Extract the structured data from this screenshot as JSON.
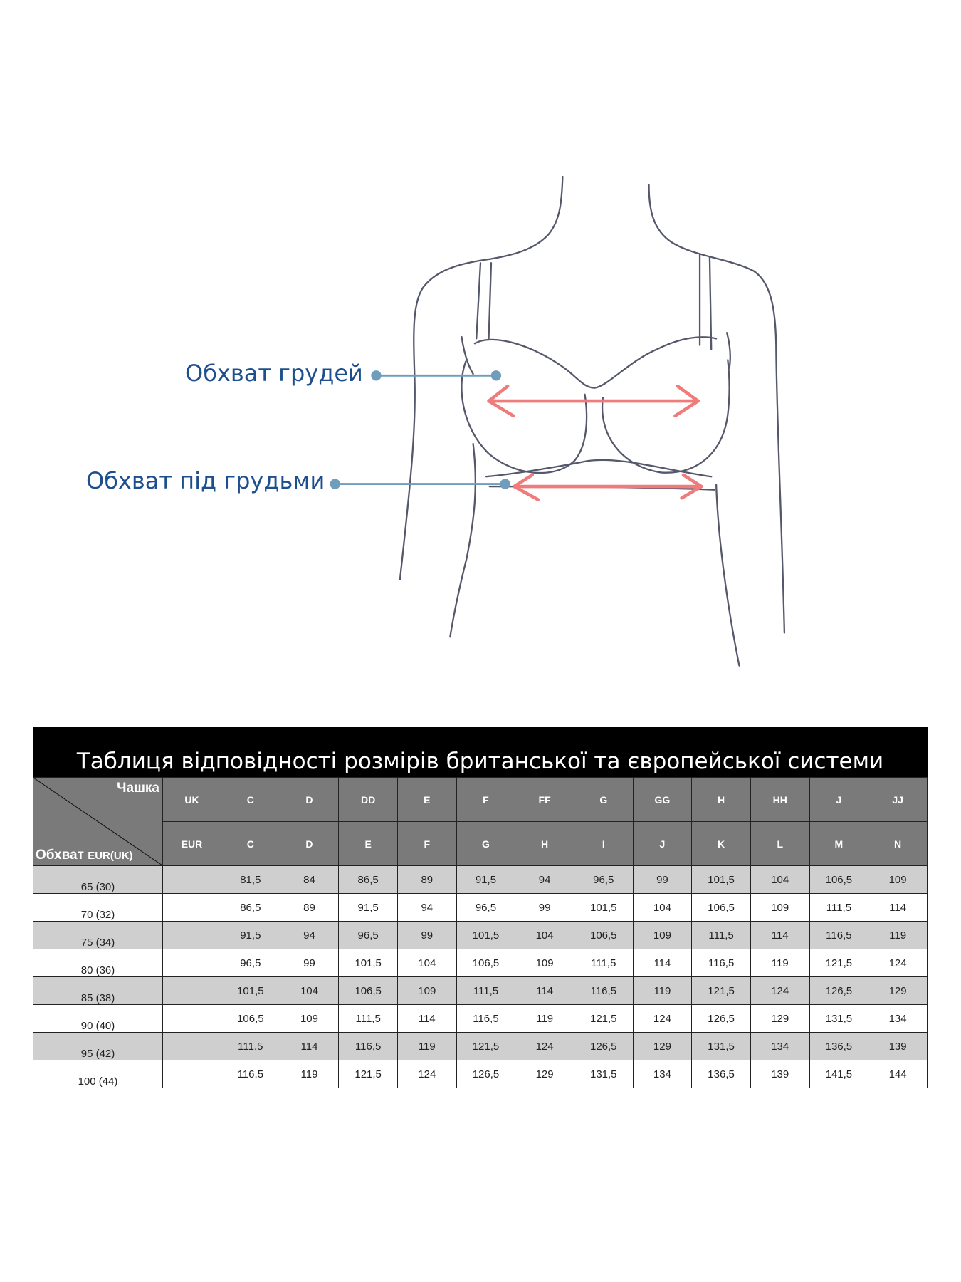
{
  "figure": {
    "label_bust": "Обхват грудей",
    "label_underbust": "Обхват під грудьми",
    "colors": {
      "label": "#1d4f8f",
      "pointer": "#6f9dbb",
      "arrow": "#ef7b7b",
      "outline": "#55586a"
    }
  },
  "table": {
    "title": "Таблиця відповідності розмірів британської та європейської системи",
    "corner_top": "Чашка",
    "corner_bottom": "Обхват",
    "corner_bottom_small": "EUR(UK)",
    "uk_label": "UK",
    "eur_label": "EUR",
    "uk_cups": [
      "C",
      "D",
      "DD",
      "E",
      "F",
      "FF",
      "G",
      "GG",
      "H",
      "HH",
      "J",
      "JJ"
    ],
    "eur_cups": [
      "C",
      "D",
      "E",
      "F",
      "G",
      "H",
      "I",
      "J",
      "K",
      "L",
      "M",
      "N"
    ],
    "rows": [
      {
        "band": "65 (30)",
        "values": [
          "81,5",
          "84",
          "86,5",
          "89",
          "91,5",
          "94",
          "96,5",
          "99",
          "101,5",
          "104",
          "106,5",
          "109"
        ]
      },
      {
        "band": "70 (32)",
        "values": [
          "86,5",
          "89",
          "91,5",
          "94",
          "96,5",
          "99",
          "101,5",
          "104",
          "106,5",
          "109",
          "111,5",
          "114"
        ]
      },
      {
        "band": "75 (34)",
        "values": [
          "91,5",
          "94",
          "96,5",
          "99",
          "101,5",
          "104",
          "106,5",
          "109",
          "111,5",
          "114",
          "116,5",
          "119"
        ]
      },
      {
        "band": "80 (36)",
        "values": [
          "96,5",
          "99",
          "101,5",
          "104",
          "106,5",
          "109",
          "111,5",
          "114",
          "116,5",
          "119",
          "121,5",
          "124"
        ]
      },
      {
        "band": "85 (38)",
        "values": [
          "101,5",
          "104",
          "106,5",
          "109",
          "111,5",
          "114",
          "116,5",
          "119",
          "121,5",
          "124",
          "126,5",
          "129"
        ]
      },
      {
        "band": "90 (40)",
        "values": [
          "106,5",
          "109",
          "111,5",
          "114",
          "116,5",
          "119",
          "121,5",
          "124",
          "126,5",
          "129",
          "131,5",
          "134"
        ]
      },
      {
        "band": "95 (42)",
        "values": [
          "111,5",
          "114",
          "116,5",
          "119",
          "121,5",
          "124",
          "126,5",
          "129",
          "131,5",
          "134",
          "136,5",
          "139"
        ]
      },
      {
        "band": "100 (44)",
        "values": [
          "116,5",
          "119",
          "121,5",
          "124",
          "126,5",
          "129",
          "131,5",
          "134",
          "136,5",
          "139",
          "141,5",
          "144"
        ]
      }
    ]
  }
}
